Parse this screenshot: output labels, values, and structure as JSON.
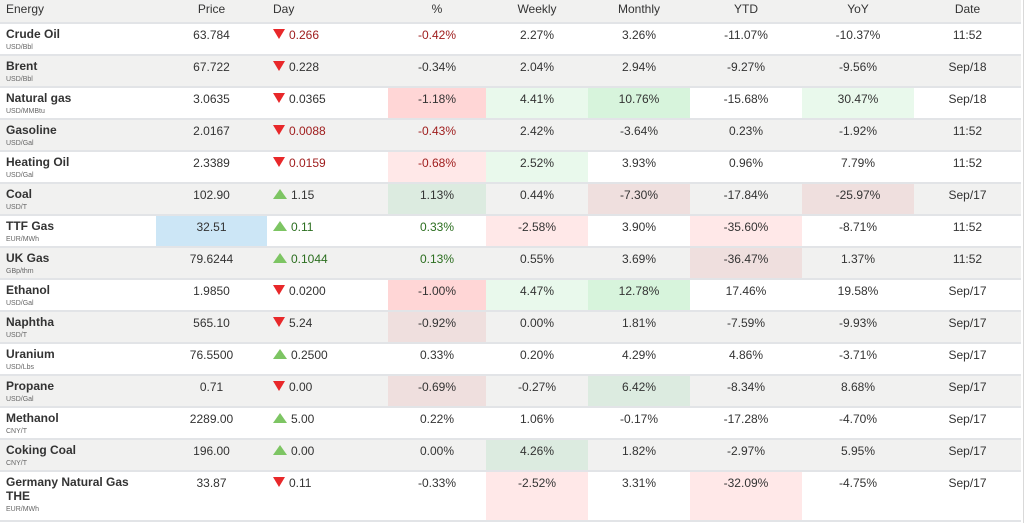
{
  "headers": [
    "Energy",
    "Price",
    "Day",
    "%",
    "Weekly",
    "Monthly",
    "YTD",
    "YoY",
    "Date"
  ],
  "colors": {
    "strong_red_bg": "#ffd6d6",
    "light_red_bg": "#ffe8e8",
    "muted_red_bg": "#efdfde",
    "strong_green_bg": "#d7f4dc",
    "light_green_bg": "#e9f9ec",
    "muted_green_bg": "#dcebe0",
    "highlight_blue_bg": "#cce6f6",
    "down_arrow": "#e8282a",
    "up_arrow": "#7dc563"
  },
  "rows": [
    {
      "name": "Crude Oil",
      "unit": "USD/Bbl",
      "price": "63.784",
      "dir": "down",
      "day": "0.266",
      "day_color": "red",
      "pct": "-0.42%",
      "pct_color": "red",
      "weekly": "2.27%",
      "monthly": "3.26%",
      "ytd": "-11.07%",
      "yoy": "-10.37%",
      "date": "11:52",
      "bg": {}
    },
    {
      "name": "Brent",
      "unit": "USD/Bbl",
      "price": "67.722",
      "dir": "down",
      "day": "0.228",
      "day_color": "neutral",
      "pct": "-0.34%",
      "pct_color": "neutral",
      "weekly": "2.04%",
      "monthly": "2.94%",
      "ytd": "-9.27%",
      "yoy": "-9.56%",
      "date": "Sep/18",
      "bg": {}
    },
    {
      "name": "Natural gas",
      "unit": "USD/MMBtu",
      "price": "3.0635",
      "dir": "down",
      "day": "0.0365",
      "day_color": "neutral",
      "pct": "-1.18%",
      "pct_color": "neutral",
      "weekly": "4.41%",
      "monthly": "10.76%",
      "ytd": "-15.68%",
      "yoy": "30.47%",
      "date": "Sep/18",
      "bg": {
        "pct": "strong_red_bg",
        "weekly": "light_green_bg",
        "monthly": "strong_green_bg",
        "yoy": "light_green_bg"
      }
    },
    {
      "name": "Gasoline",
      "unit": "USD/Gal",
      "price": "2.0167",
      "dir": "down",
      "day": "0.0088",
      "day_color": "red",
      "pct": "-0.43%",
      "pct_color": "red",
      "weekly": "2.42%",
      "monthly": "-3.64%",
      "ytd": "0.23%",
      "yoy": "-1.92%",
      "date": "11:52",
      "bg": {}
    },
    {
      "name": "Heating Oil",
      "unit": "USD/Gal",
      "price": "2.3389",
      "dir": "down",
      "day": "0.0159",
      "day_color": "red",
      "pct": "-0.68%",
      "pct_color": "red",
      "weekly": "2.52%",
      "monthly": "3.93%",
      "ytd": "0.96%",
      "yoy": "7.79%",
      "date": "11:52",
      "bg": {
        "pct": "light_red_bg",
        "weekly": "light_green_bg"
      }
    },
    {
      "name": "Coal",
      "unit": "USD/T",
      "price": "102.90",
      "dir": "up",
      "day": "1.15",
      "day_color": "neutral",
      "pct": "1.13%",
      "pct_color": "neutral",
      "weekly": "0.44%",
      "monthly": "-7.30%",
      "ytd": "-17.84%",
      "yoy": "-25.97%",
      "date": "Sep/17",
      "bg": {
        "pct": "muted_green_bg",
        "monthly": "muted_red_bg",
        "yoy": "muted_red_bg"
      }
    },
    {
      "name": "TTF Gas",
      "unit": "EUR/MWh",
      "price": "32.51",
      "dir": "up",
      "day": "0.11",
      "day_color": "green",
      "pct": "0.33%",
      "pct_color": "green",
      "weekly": "-2.58%",
      "monthly": "3.90%",
      "ytd": "-35.60%",
      "yoy": "-8.71%",
      "date": "11:52",
      "bg": {
        "price": "highlight_blue_bg",
        "weekly": "light_red_bg",
        "ytd": "light_red_bg"
      }
    },
    {
      "name": "UK Gas",
      "unit": "GBp/thm",
      "price": "79.6244",
      "dir": "up",
      "day": "0.1044",
      "day_color": "green",
      "pct": "0.13%",
      "pct_color": "green",
      "weekly": "0.55%",
      "monthly": "3.69%",
      "ytd": "-36.47%",
      "yoy": "1.37%",
      "date": "11:52",
      "bg": {
        "ytd": "muted_red_bg"
      }
    },
    {
      "name": "Ethanol",
      "unit": "USD/Gal",
      "price": "1.9850",
      "dir": "down",
      "day": "0.0200",
      "day_color": "neutral",
      "pct": "-1.00%",
      "pct_color": "neutral",
      "weekly": "4.47%",
      "monthly": "12.78%",
      "ytd": "17.46%",
      "yoy": "19.58%",
      "date": "Sep/17",
      "bg": {
        "pct": "strong_red_bg",
        "weekly": "light_green_bg",
        "monthly": "strong_green_bg"
      }
    },
    {
      "name": "Naphtha",
      "unit": "USD/T",
      "price": "565.10",
      "dir": "down",
      "day": "5.24",
      "day_color": "neutral",
      "pct": "-0.92%",
      "pct_color": "neutral",
      "weekly": "0.00%",
      "monthly": "1.81%",
      "ytd": "-7.59%",
      "yoy": "-9.93%",
      "date": "Sep/17",
      "bg": {
        "pct": "muted_red_bg"
      }
    },
    {
      "name": "Uranium",
      "unit": "USD/Lbs",
      "price": "76.5500",
      "dir": "up",
      "day": "0.2500",
      "day_color": "neutral",
      "pct": "0.33%",
      "pct_color": "neutral",
      "weekly": "0.20%",
      "monthly": "4.29%",
      "ytd": "4.86%",
      "yoy": "-3.71%",
      "date": "Sep/17",
      "bg": {}
    },
    {
      "name": "Propane",
      "unit": "USD/Gal",
      "price": "0.71",
      "dir": "down",
      "day": "0.00",
      "day_color": "neutral",
      "pct": "-0.69%",
      "pct_color": "neutral",
      "weekly": "-0.27%",
      "monthly": "6.42%",
      "ytd": "-8.34%",
      "yoy": "8.68%",
      "date": "Sep/17",
      "bg": {
        "pct": "muted_red_bg",
        "monthly": "muted_green_bg"
      }
    },
    {
      "name": "Methanol",
      "unit": "CNY/T",
      "price": "2289.00",
      "dir": "up",
      "day": "5.00",
      "day_color": "neutral",
      "pct": "0.22%",
      "pct_color": "neutral",
      "weekly": "1.06%",
      "monthly": "-0.17%",
      "ytd": "-17.28%",
      "yoy": "-4.70%",
      "date": "Sep/17",
      "bg": {}
    },
    {
      "name": "Coking Coal",
      "unit": "CNY/T",
      "price": "196.00",
      "dir": "up",
      "day": "0.00",
      "day_color": "neutral",
      "pct": "0.00%",
      "pct_color": "neutral",
      "weekly": "4.26%",
      "monthly": "1.82%",
      "ytd": "-2.97%",
      "yoy": "5.95%",
      "date": "Sep/17",
      "bg": {
        "weekly": "muted_green_bg"
      }
    },
    {
      "name": "Germany Natural Gas THE",
      "unit": "EUR/MWh",
      "price": "33.87",
      "dir": "down",
      "day": "0.11",
      "day_color": "neutral",
      "pct": "-0.33%",
      "pct_color": "neutral",
      "weekly": "-2.52%",
      "monthly": "3.31%",
      "ytd": "-32.09%",
      "yoy": "-4.75%",
      "date": "Sep/17",
      "bg": {
        "weekly": "light_red_bg",
        "ytd": "light_red_bg"
      }
    }
  ]
}
